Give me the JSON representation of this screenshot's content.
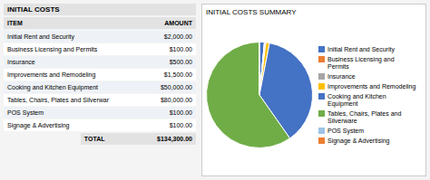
{
  "chart_data": [
    {
      "type": "table",
      "title": "INITIAL COSTS",
      "columns": [
        "ITEM",
        "AMOUNT"
      ],
      "rows": [
        [
          "Initial Rent and Security",
          "$2,000.00"
        ],
        [
          "Business Licensing and Permits",
          "$100.00"
        ],
        [
          "Insurance",
          "$500.00"
        ],
        [
          "Improvements and Remodeling",
          "$1,500.00"
        ],
        [
          "Cooking and Kitchen Equipment",
          "$50,000.00"
        ],
        [
          "Tables, Chairs, Plates and Silverwar",
          "$80,000.00"
        ],
        [
          "POS System",
          "$100.00"
        ],
        [
          "Signage & Advertising",
          "$100.00"
        ]
      ],
      "total_label": "TOTAL",
      "total_value": "$134,300.00"
    },
    {
      "type": "pie",
      "title": "INITIAL COSTS SUMMARY",
      "categories": [
        "Initial Rent and Security",
        "Business Licensing and\nPermits",
        "Insurance",
        "Improvements and Remodeling",
        "Cooking and Kitchen\nEquipment",
        "Tables, Chairs, Plates and\nSilverware",
        "POS System",
        "Signage & Advertising"
      ],
      "values": [
        2000,
        100,
        500,
        1500,
        50000,
        80000,
        100,
        100
      ],
      "colors": [
        "#4472C4",
        "#ED7D31",
        "#A5A5A5",
        "#FFC000",
        "#4472C4",
        "#70AD47",
        "#9DC3E6",
        "#ED7D31"
      ],
      "legend": "right"
    }
  ]
}
